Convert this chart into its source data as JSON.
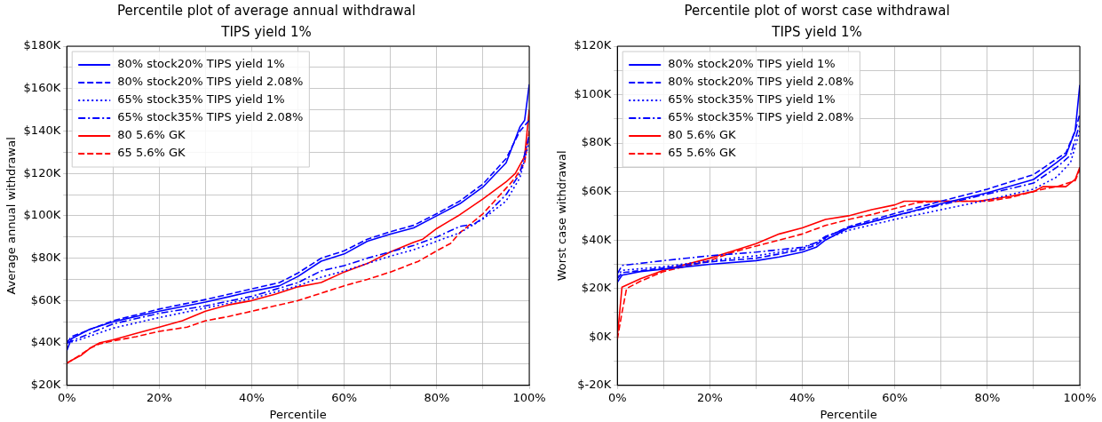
{
  "chart_data": [
    {
      "type": "line",
      "title": "Percentile plot of average annual withdrawal",
      "subtitle": "TIPS yield 1%",
      "xlabel": "Percentile",
      "ylabel": "Average annual withdrawal",
      "xlim": [
        0,
        100
      ],
      "ylim": [
        20,
        180
      ],
      "xticks": [
        {
          "value": 0,
          "label": "0%"
        },
        {
          "value": 10,
          "label": null
        },
        {
          "value": 20,
          "label": "20%"
        },
        {
          "value": 30,
          "label": null
        },
        {
          "value": 40,
          "label": "40%"
        },
        {
          "value": 50,
          "label": null
        },
        {
          "value": 60,
          "label": "60%"
        },
        {
          "value": 70,
          "label": null
        },
        {
          "value": 80,
          "label": "80%"
        },
        {
          "value": 90,
          "label": null
        },
        {
          "value": 100,
          "label": "100%"
        }
      ],
      "yticks": [
        {
          "value": 20,
          "label": "$20K"
        },
        {
          "value": 30,
          "label": null
        },
        {
          "value": 40,
          "label": "$40K"
        },
        {
          "value": 50,
          "label": null
        },
        {
          "value": 60,
          "label": "$60K"
        },
        {
          "value": 70,
          "label": null
        },
        {
          "value": 80,
          "label": "$80K"
        },
        {
          "value": 90,
          "label": null
        },
        {
          "value": 100,
          "label": "$100K"
        },
        {
          "value": 110,
          "label": null
        },
        {
          "value": 120,
          "label": "$120K"
        },
        {
          "value": 130,
          "label": null
        },
        {
          "value": 140,
          "label": "$140K"
        },
        {
          "value": 150,
          "label": null
        },
        {
          "value": 160,
          "label": "$160K"
        },
        {
          "value": 170,
          "label": null
        },
        {
          "value": 180,
          "label": "$180K"
        }
      ],
      "grid": true,
      "legend": "top left",
      "series": [
        {
          "name": "80% stock20% TIPS yield 1%",
          "color": "#0000ff",
          "line_style": "solid",
          "x": [
            0,
            1,
            5,
            10,
            20,
            30,
            40,
            46,
            50,
            55,
            60,
            65,
            70,
            75,
            80,
            85,
            90,
            95,
            98,
            99,
            100
          ],
          "values": [
            36.4,
            42,
            46.5,
            50,
            55,
            59.3,
            64.3,
            67,
            71.4,
            78.6,
            82,
            88,
            91.4,
            94.3,
            100,
            105.7,
            113.6,
            125,
            142,
            145,
            162
          ]
        },
        {
          "name": "80% stock20% TIPS yield 2.08%",
          "color": "#0000ff",
          "line_style": "dashed",
          "x": [
            0,
            1,
            10,
            20,
            30,
            40,
            46,
            50,
            55,
            60,
            65,
            70,
            75,
            80,
            85,
            90,
            95,
            98,
            100
          ],
          "values": [
            40,
            43,
            50.5,
            56,
            60.5,
            65.5,
            68.5,
            73,
            80,
            83.5,
            89,
            92.5,
            95.5,
            101,
            107,
            115,
            127,
            140,
            145
          ]
        },
        {
          "name": "65% stock35% TIPS yield 1%",
          "color": "#0000ff",
          "line_style": "dotted",
          "x": [
            0,
            2,
            10,
            20,
            30,
            40,
            50,
            55,
            60,
            70,
            75,
            80,
            85,
            90,
            95,
            98,
            100
          ],
          "values": [
            40,
            41,
            47,
            52,
            56.5,
            61,
            67,
            71,
            74,
            81,
            84,
            88,
            92,
            98.5,
            107,
            118,
            135
          ]
        },
        {
          "name": "65% stock35% TIPS yield 2.08%",
          "color": "#0000ff",
          "line_style": "dashdot",
          "x": [
            0,
            10,
            20,
            30,
            40,
            50,
            55,
            60,
            65,
            70,
            75,
            80,
            85,
            88,
            90,
            95,
            98,
            100
          ],
          "values": [
            40,
            49,
            54,
            57.5,
            62,
            68.5,
            74,
            76.5,
            80,
            83,
            86,
            90,
            95,
            96,
            99,
            110,
            120,
            138
          ]
        },
        {
          "name": "80 5.6% GK",
          "color": "#ff0000",
          "line_style": "solid",
          "x": [
            0,
            2,
            3,
            5,
            7,
            10,
            15,
            20,
            25,
            30,
            35,
            40,
            45,
            50,
            55,
            60,
            65,
            70,
            75,
            77,
            80,
            85,
            90,
            95,
            97,
            99,
            100
          ],
          "values": [
            30.5,
            33,
            34,
            37.5,
            40,
            41.5,
            44.5,
            47.5,
            50.5,
            55,
            58,
            60,
            63,
            66.5,
            68.5,
            73.5,
            77.5,
            83,
            87.5,
            89,
            94,
            100.5,
            108,
            116,
            120,
            128,
            150
          ]
        },
        {
          "name": "65 5.6% GK",
          "color": "#ff0000",
          "line_style": "dashed",
          "x": [
            0,
            2,
            5,
            7,
            10,
            15,
            20,
            26,
            30,
            35,
            40,
            45,
            50,
            55,
            60,
            65,
            70,
            76,
            80,
            83,
            85,
            90,
            95,
            97,
            99,
            100
          ],
          "values": [
            30.5,
            33,
            37.5,
            39.5,
            41,
            43,
            45.5,
            47.5,
            50.5,
            52.5,
            55,
            57.5,
            60,
            63.5,
            67,
            70,
            73.5,
            78.5,
            83.5,
            87,
            92,
            101,
            113,
            118,
            125,
            140
          ]
        }
      ]
    },
    {
      "type": "line",
      "title": "Percentile plot of worst case withdrawal",
      "subtitle": "TIPS yield 1%",
      "xlabel": "Percentile",
      "ylabel": "Worst case withdrawal",
      "xlim": [
        0,
        100
      ],
      "ylim": [
        -20,
        120
      ],
      "xticks": [
        {
          "value": 0,
          "label": "0%"
        },
        {
          "value": 10,
          "label": null
        },
        {
          "value": 20,
          "label": "20%"
        },
        {
          "value": 30,
          "label": null
        },
        {
          "value": 40,
          "label": "40%"
        },
        {
          "value": 50,
          "label": null
        },
        {
          "value": 60,
          "label": "60%"
        },
        {
          "value": 70,
          "label": null
        },
        {
          "value": 80,
          "label": "80%"
        },
        {
          "value": 90,
          "label": null
        },
        {
          "value": 100,
          "label": "100%"
        }
      ],
      "yticks": [
        {
          "value": -20,
          "label": "$-20K"
        },
        {
          "value": -10,
          "label": null
        },
        {
          "value": 0,
          "label": "$0K"
        },
        {
          "value": 10,
          "label": null
        },
        {
          "value": 20,
          "label": "$20K"
        },
        {
          "value": 30,
          "label": null
        },
        {
          "value": 40,
          "label": "$40K"
        },
        {
          "value": 50,
          "label": null
        },
        {
          "value": 60,
          "label": "$60K"
        },
        {
          "value": 70,
          "label": null
        },
        {
          "value": 80,
          "label": "$80K"
        },
        {
          "value": 90,
          "label": null
        },
        {
          "value": 100,
          "label": "$100K"
        },
        {
          "value": 110,
          "label": null
        },
        {
          "value": 120,
          "label": "$120K"
        }
      ],
      "grid": true,
      "legend": "top left",
      "series": [
        {
          "name": "80% stock20% TIPS yield 1%",
          "color": "#0000ff",
          "line_style": "solid",
          "x": [
            0,
            1,
            5,
            10,
            20,
            30,
            35,
            40,
            43,
            45,
            50,
            60,
            70,
            80,
            90,
            95,
            97,
            99,
            100
          ],
          "values": [
            22.5,
            25.5,
            27,
            28,
            30,
            31.5,
            33,
            35,
            37,
            40,
            45,
            50,
            55,
            59.5,
            65,
            72,
            75,
            85,
            104
          ]
        },
        {
          "name": "80% stock20% TIPS yield 2.08%",
          "color": "#0000ff",
          "line_style": "dashed",
          "x": [
            0,
            1,
            10,
            20,
            30,
            40,
            43,
            45,
            50,
            60,
            70,
            80,
            90,
            95,
            97,
            99,
            100
          ],
          "values": [
            24,
            26.5,
            28.5,
            31,
            32.5,
            36,
            38,
            41,
            45.5,
            51,
            56,
            61,
            67,
            73.5,
            76,
            85,
            92
          ]
        },
        {
          "name": "65% stock35% TIPS yield 1%",
          "color": "#0000ff",
          "line_style": "dotted",
          "x": [
            0,
            1,
            10,
            20,
            30,
            40,
            45,
            50,
            60,
            70,
            80,
            90,
            95,
            98,
            100
          ],
          "values": [
            25,
            27.5,
            29,
            31.5,
            33.5,
            36.5,
            40.5,
            44,
            48.5,
            52.5,
            56.5,
            61,
            66,
            72,
            85
          ]
        },
        {
          "name": "65% stock35% TIPS yield 2.08%",
          "color": "#0000ff",
          "line_style": "dashdot",
          "x": [
            0,
            1,
            10,
            20,
            30,
            40,
            43,
            45,
            50,
            60,
            70,
            80,
            90,
            95,
            98,
            100
          ],
          "values": [
            26,
            29.5,
            31.5,
            33.5,
            35,
            37,
            39,
            41.5,
            45,
            50,
            54.5,
            59,
            63.5,
            70,
            75,
            88
          ]
        },
        {
          "name": "80 5.6% GK",
          "color": "#ff0000",
          "line_style": "solid",
          "x": [
            0,
            0.5,
            1,
            5,
            10,
            20,
            25,
            30,
            35,
            40,
            45,
            50,
            55,
            60,
            62,
            70,
            78,
            85,
            90,
            92,
            97,
            99,
            100
          ],
          "values": [
            0,
            10,
            20.5,
            24,
            27.5,
            32.5,
            35.5,
            38.5,
            42.5,
            45,
            48.5,
            50,
            52.5,
            54.5,
            56,
            56,
            56,
            58,
            60,
            62,
            62,
            65,
            70
          ]
        },
        {
          "name": "65 5.6% GK",
          "color": "#ff0000",
          "line_style": "dashed",
          "x": [
            0,
            1,
            2,
            5,
            10,
            20,
            25,
            30,
            35,
            40,
            45,
            50,
            55,
            60,
            65,
            70,
            80,
            85,
            90,
            92,
            95,
            99,
            100
          ],
          "values": [
            -1,
            10,
            20,
            23,
            27,
            31.5,
            35,
            37.5,
            40,
            42.5,
            46,
            48.5,
            50.5,
            53,
            55.5,
            56,
            56,
            57.5,
            60,
            61,
            62,
            64.5,
            69
          ]
        }
      ]
    }
  ]
}
